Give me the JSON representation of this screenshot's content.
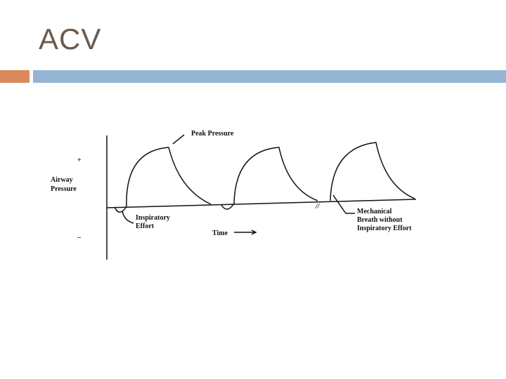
{
  "header": {
    "title": "ACV"
  },
  "diagram": {
    "peak_label": "Peak Pressure",
    "plus": "+",
    "minus": "–",
    "y_label": [
      "Airway",
      "Pressure"
    ],
    "effort_label": [
      "Inspiratory",
      "Effort"
    ],
    "x_label": "Time",
    "break_mark": "//",
    "mechanical_label": [
      "Mechanical",
      "Breath without",
      "Inspiratory Effort"
    ]
  }
}
